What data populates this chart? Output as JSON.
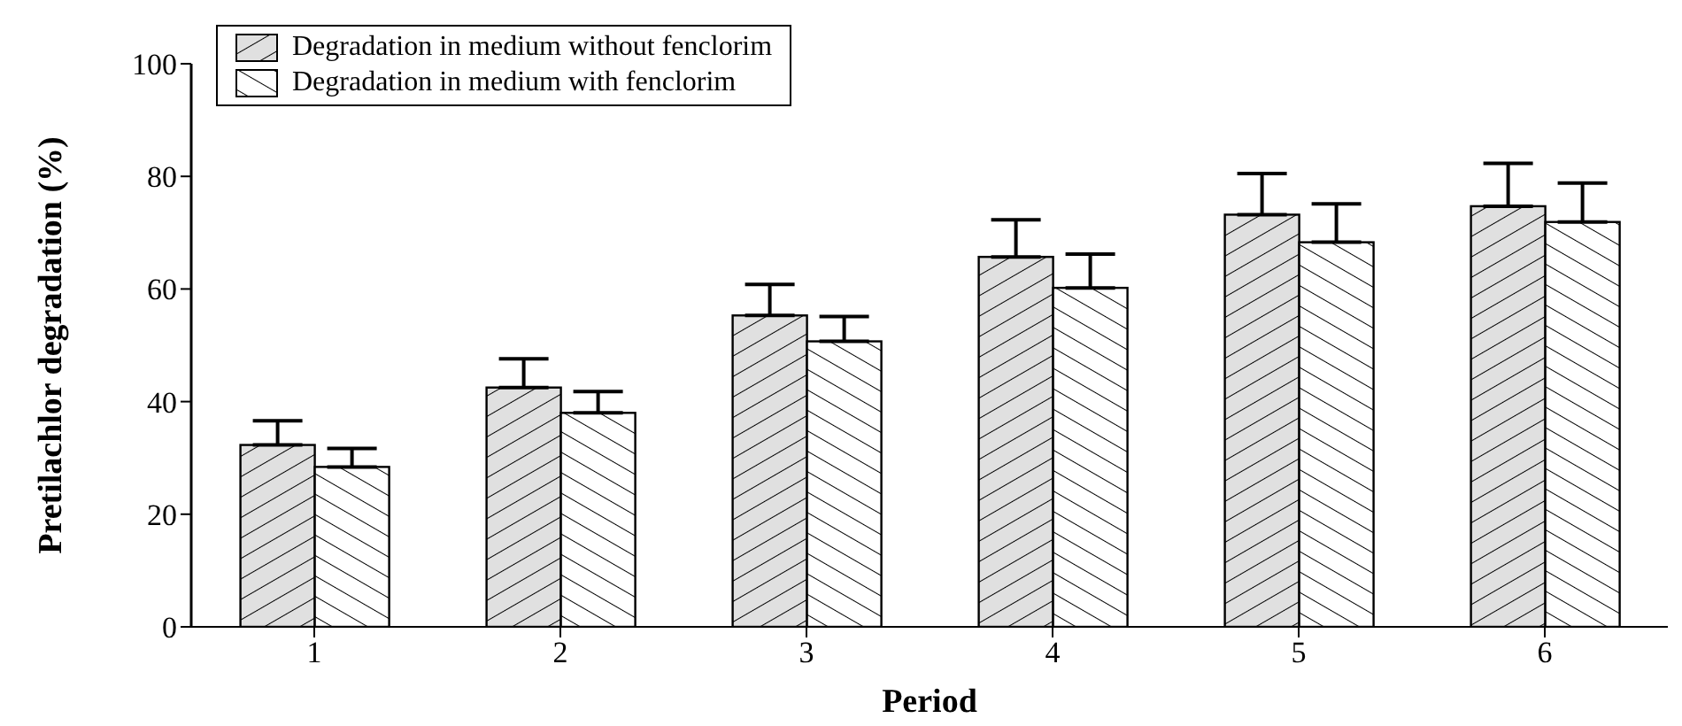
{
  "chart_data": {
    "type": "bar",
    "xlabel": "Period",
    "ylabel": "Pretilachlor degradation (%)",
    "categories": [
      "1",
      "2",
      "3",
      "4",
      "5",
      "6"
    ],
    "series": [
      {
        "name": "Degradation in medium without fenclorim",
        "color": "#e0e0e0",
        "values": [
          32.3,
          42.5,
          55.3,
          65.7,
          73.2,
          74.7
        ],
        "errors": [
          [
            32.3,
            36.6
          ],
          [
            42.5,
            47.6
          ],
          [
            55.3,
            60.8
          ],
          [
            65.7,
            72.3
          ],
          [
            73.2,
            80.5
          ],
          [
            74.7,
            82.3
          ]
        ]
      },
      {
        "name": "Degradation in medium with fenclorim",
        "color": "#ffffff",
        "values": [
          28.4,
          38,
          50.7,
          60.2,
          68.3,
          71.9
        ],
        "errors": [
          [
            28.4,
            31.7
          ],
          [
            38,
            41.8
          ],
          [
            50.7,
            55.1
          ],
          [
            60.2,
            66.2
          ],
          [
            68.3,
            75.1
          ],
          [
            71.9,
            78.8
          ]
        ]
      }
    ],
    "ylim": [
      0,
      100
    ],
    "yticks": [
      0,
      20,
      40,
      60,
      80,
      100
    ],
    "grid": false,
    "legend": "top left"
  }
}
